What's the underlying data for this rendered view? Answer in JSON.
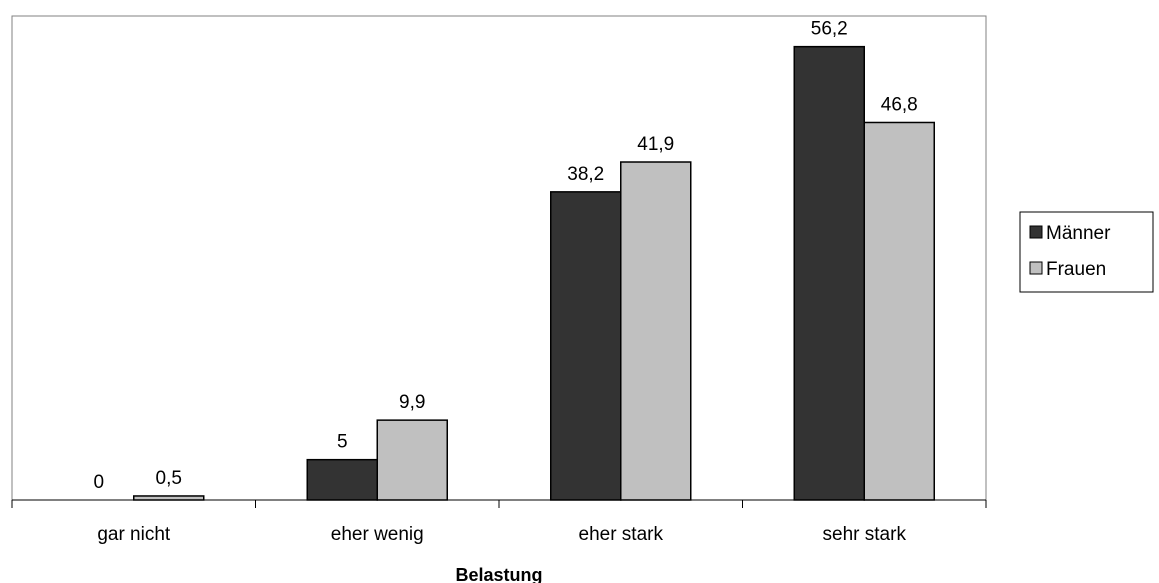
{
  "chart_data": {
    "type": "bar",
    "categories": [
      "gar nicht",
      "eher wenig",
      "eher stark",
      "sehr stark"
    ],
    "series": [
      {
        "name": "Männer",
        "values": [
          0,
          5,
          38.2,
          56.2
        ],
        "labels": [
          "0",
          "5",
          "38,2",
          "56,2"
        ],
        "color": "#333333"
      },
      {
        "name": "Frauen",
        "values": [
          0.5,
          9.9,
          41.9,
          46.8
        ],
        "labels": [
          "0,5",
          "9,9",
          "41,9",
          "46,8"
        ],
        "color": "#c0c0c0"
      }
    ],
    "xlabel": "Belastung",
    "ylabel": "",
    "ylim": [
      0,
      60
    ],
    "grid": false,
    "legend_position": "right"
  }
}
